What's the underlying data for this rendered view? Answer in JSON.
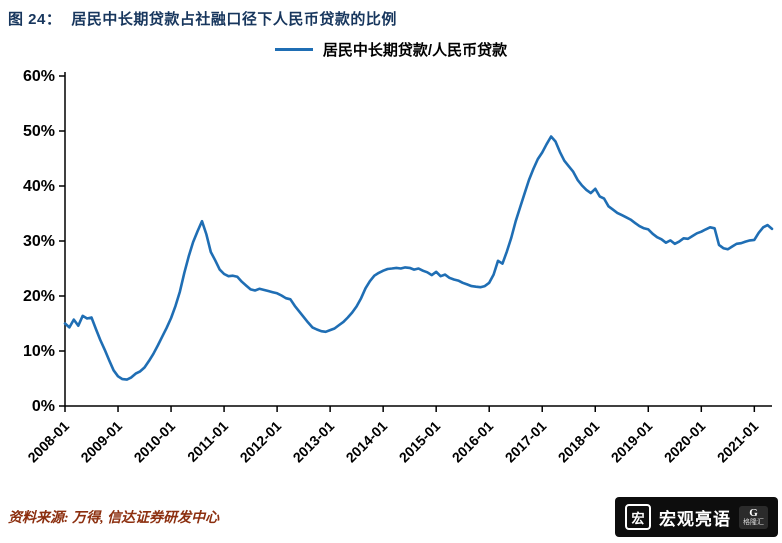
{
  "title": {
    "prefix": "图  24：",
    "text": "居民中长期贷款占社融口径下人民币贷款的比例"
  },
  "source": "资料来源: 万得, 信达证券研发中心",
  "watermark": {
    "name": "宏观亮语",
    "logo_initial": "G",
    "logo_text": "格隆汇"
  },
  "colors": {
    "line": "#1f6eb4",
    "title": "#17365d",
    "source": "#8c2f0f",
    "axis": "#000000"
  },
  "chart_data": {
    "type": "line",
    "title": "居民中长期贷款占社融口径下人民币贷款的比例",
    "xlabel": "",
    "ylabel": "",
    "ylim": [
      0,
      60
    ],
    "y_ticks": [
      0,
      10,
      20,
      30,
      40,
      50,
      60
    ],
    "y_tick_suffix": "%",
    "grid": false,
    "legend_position": "top-center",
    "x_start": "2008-01",
    "x_step": "1 month",
    "x_ticks": [
      {
        "label": "2008-01",
        "month": 0
      },
      {
        "label": "2009-01",
        "month": 12
      },
      {
        "label": "2010-01",
        "month": 24
      },
      {
        "label": "2011-01",
        "month": 36
      },
      {
        "label": "2012-01",
        "month": 48
      },
      {
        "label": "2013-01",
        "month": 60
      },
      {
        "label": "2014-01",
        "month": 72
      },
      {
        "label": "2015-01",
        "month": 84
      },
      {
        "label": "2016-01",
        "month": 96
      },
      {
        "label": "2017-01",
        "month": 108
      },
      {
        "label": "2018-01",
        "month": 120
      },
      {
        "label": "2019-01",
        "month": 132
      },
      {
        "label": "2020-01",
        "month": 144
      },
      {
        "label": "2021-01",
        "month": 156
      }
    ],
    "series": [
      {
        "name": "居民中长期贷款/人民币贷款",
        "color": "#1f6eb4",
        "unit": "%",
        "values": [
          15.0,
          14.3,
          15.7,
          14.6,
          16.4,
          15.9,
          16.1,
          14.0,
          12.0,
          10.2,
          8.3,
          6.5,
          5.4,
          4.9,
          4.8,
          5.2,
          5.9,
          6.3,
          7.0,
          8.2,
          9.5,
          11.0,
          12.6,
          14.2,
          16.0,
          18.2,
          20.8,
          24.2,
          27.2,
          29.8,
          31.8,
          33.6,
          31.2,
          28.0,
          26.5,
          24.8,
          24.0,
          23.6,
          23.7,
          23.5,
          22.6,
          21.9,
          21.2,
          21.0,
          21.3,
          21.1,
          20.9,
          20.7,
          20.5,
          20.1,
          19.6,
          19.4,
          18.2,
          17.2,
          16.2,
          15.2,
          14.3,
          13.9,
          13.6,
          13.5,
          13.8,
          14.1,
          14.7,
          15.3,
          16.1,
          17.0,
          18.1,
          19.6,
          21.4,
          22.7,
          23.7,
          24.2,
          24.6,
          24.9,
          25.0,
          25.1,
          25.0,
          25.2,
          25.1,
          24.8,
          25.0,
          24.6,
          24.3,
          23.8,
          24.4,
          23.6,
          23.9,
          23.3,
          23.0,
          22.8,
          22.4,
          22.1,
          21.8,
          21.7,
          21.6,
          21.8,
          22.4,
          23.9,
          26.4,
          25.9,
          28.1,
          30.6,
          33.6,
          36.1,
          38.6,
          41.1,
          43.1,
          44.9,
          46.1,
          47.6,
          49.0,
          48.1,
          46.2,
          44.6,
          43.6,
          42.6,
          41.1,
          40.1,
          39.3,
          38.7,
          39.5,
          38.1,
          37.7,
          36.3,
          35.7,
          35.1,
          34.7,
          34.3,
          33.9,
          33.3,
          32.7,
          32.3,
          32.1,
          31.3,
          30.7,
          30.3,
          29.7,
          30.1,
          29.5,
          29.9,
          30.5,
          30.4,
          30.9,
          31.4,
          31.7,
          32.1,
          32.5,
          32.3,
          29.3,
          28.7,
          28.5,
          29.0,
          29.5,
          29.6,
          29.9,
          30.1,
          30.2,
          31.5,
          32.5,
          32.9,
          32.2
        ]
      }
    ]
  }
}
